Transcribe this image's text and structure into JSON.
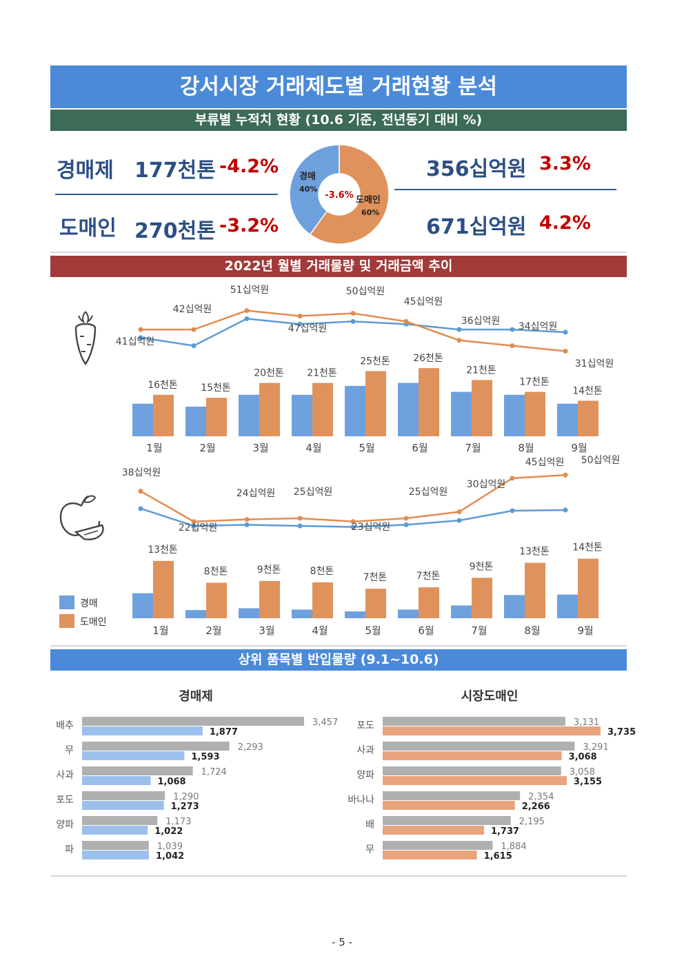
{
  "title": "강서시장 거래제도별 거래현황 분석",
  "subtitle": "부류별 누적치 현황 (10.6 기준, 전년동기 대비 %)",
  "summary": {
    "auction": {
      "label": "경매제",
      "volume": "177천톤",
      "volume_pct": "-4.2%",
      "amount": "356십억원",
      "amount_pct": "3.3%"
    },
    "wholesale": {
      "label": "도매인",
      "volume": "270천톤",
      "volume_pct": "-3.2%",
      "amount": "671십억원",
      "amount_pct": "4.2%"
    },
    "pie": {
      "center": "-3.6%",
      "auction_label": "경매",
      "auction_pct_label": "40%",
      "auction_share": 40,
      "wholesale_label": "도매인",
      "wholesale_pct_label": "60%",
      "wholesale_share": 60
    }
  },
  "trend_title": "2022년 월별 거래물량 및 거래금액  추이",
  "top_title": "상위 품목별 반입물량 (9.1~10.6)",
  "legend": {
    "auction": "경매",
    "wholesale": "도매인"
  },
  "colors": {
    "auction": "#6fa0de",
    "wholesale": "#e0925c",
    "line_auction": "#5b9bd5",
    "line_wholesale": "#e38b4f",
    "gray_bar": "#b0b0b0",
    "bar_auction_light": "#9cc0ec",
    "bar_wholesale_light": "#e8a47c"
  },
  "icons": {
    "vegetable": "carrot-icon",
    "fruit": "apple-icon"
  },
  "chart_data": [
    {
      "type": "bar",
      "categories": [
        "1월",
        "2월",
        "3월",
        "4월",
        "5월",
        "6월",
        "7월",
        "8월",
        "9월"
      ],
      "series": [
        {
          "name": "경매",
          "values": [
            11,
            10,
            14,
            14,
            17,
            18,
            15,
            14,
            11
          ]
        },
        {
          "name": "도매인",
          "values": [
            14,
            13,
            18,
            18,
            22,
            23,
            19,
            15,
            12
          ]
        }
      ],
      "labels": [
        "16천톤",
        "15천톤",
        "20천톤",
        "21천톤",
        "25천톤",
        "26천톤",
        "21천톤",
        "17천톤",
        "14천톤"
      ],
      "ylim": [
        0,
        30
      ]
    },
    {
      "type": "line",
      "categories": [
        "1월",
        "2월",
        "3월",
        "4월",
        "5월",
        "6월",
        "7월",
        "8월",
        "9월"
      ],
      "series": [
        {
          "name": "경매",
          "values": [
            41,
            38,
            48,
            46,
            47,
            46,
            44,
            44,
            43
          ]
        },
        {
          "name": "도매인",
          "values": [
            44,
            44,
            51,
            49,
            50,
            47,
            40,
            38,
            36
          ]
        }
      ],
      "labels": [
        "41십억원",
        "42십억원",
        "51십억원",
        "47십억원",
        "50십억원",
        "45십억원",
        "36십억원",
        "34십억원",
        "31십억원"
      ],
      "ylim": [
        30,
        55
      ]
    },
    {
      "type": "bar",
      "categories": [
        "1월",
        "2월",
        "3월",
        "4월",
        "5월",
        "6월",
        "7월",
        "8월",
        "9월"
      ],
      "series": [
        {
          "name": "경매",
          "values": [
            5.5,
            1.8,
            2.2,
            1.9,
            1.5,
            1.9,
            2.8,
            5.1,
            5.2
          ]
        },
        {
          "name": "도매인",
          "values": [
            12.6,
            7.8,
            8.2,
            7.9,
            6.5,
            6.8,
            8.9,
            12.2,
            13.1
          ]
        }
      ],
      "labels": [
        "13천톤",
        "8천톤",
        "9천톤",
        "8천톤",
        "7천톤",
        "7천톤",
        "9천톤",
        "13천톤",
        "14천톤"
      ],
      "ylim": [
        0,
        15
      ]
    },
    {
      "type": "line",
      "categories": [
        "1월",
        "2월",
        "3월",
        "4월",
        "5월",
        "6월",
        "7월",
        "8월",
        "9월"
      ],
      "series": [
        {
          "name": "경매",
          "values": [
            30,
            22,
            22.5,
            22,
            21.5,
            22.5,
            24.5,
            29,
            29.3
          ]
        },
        {
          "name": "도매인",
          "values": [
            38,
            24,
            25,
            25.5,
            24,
            25.5,
            28.5,
            44,
            45.5
          ]
        }
      ],
      "labels": [
        "38십억원",
        "22십억원",
        "24십억원",
        "25십억원",
        "23십억원",
        "25십억원",
        "30십억원",
        "45십억원",
        "50십억원"
      ],
      "ylim": [
        15,
        50
      ]
    },
    {
      "type": "bar",
      "title": "경매제",
      "categories": [
        "배추",
        "무",
        "사과",
        "포도",
        "양파",
        "파"
      ],
      "series": [
        {
          "name": "gray",
          "values": [
            3457,
            2293,
            1724,
            1290,
            1173,
            1039
          ]
        },
        {
          "name": "경매",
          "values": [
            1877,
            1593,
            1068,
            1273,
            1022,
            1042
          ]
        }
      ],
      "xlim": [
        0,
        3500
      ]
    },
    {
      "type": "bar",
      "title": "시장도매인",
      "categories": [
        "포도",
        "사과",
        "양파",
        "바나나",
        "배",
        "무"
      ],
      "series": [
        {
          "name": "gray",
          "values": [
            3131,
            3291,
            3058,
            2354,
            2195,
            1884
          ]
        },
        {
          "name": "도매인",
          "values": [
            3735,
            3068,
            3155,
            2266,
            1737,
            1615
          ]
        }
      ],
      "xlim": [
        0,
        3800
      ]
    }
  ],
  "number_labels": {
    "left_gray": [
      "3,457",
      "2,293",
      "1,724",
      "1,290",
      "1,173",
      "1,039"
    ],
    "left_blue": [
      "1,877",
      "1,593",
      "1,068",
      "1,273",
      "1,022",
      "1,042"
    ],
    "right_gray": [
      "3,131",
      "3,291",
      "3,058",
      "2,354",
      "2,195",
      "1,884"
    ],
    "right_orange": [
      "3,735",
      "3,068",
      "3,155",
      "2,266",
      "1,737",
      "1,615"
    ]
  },
  "page_number": "- 5 -"
}
